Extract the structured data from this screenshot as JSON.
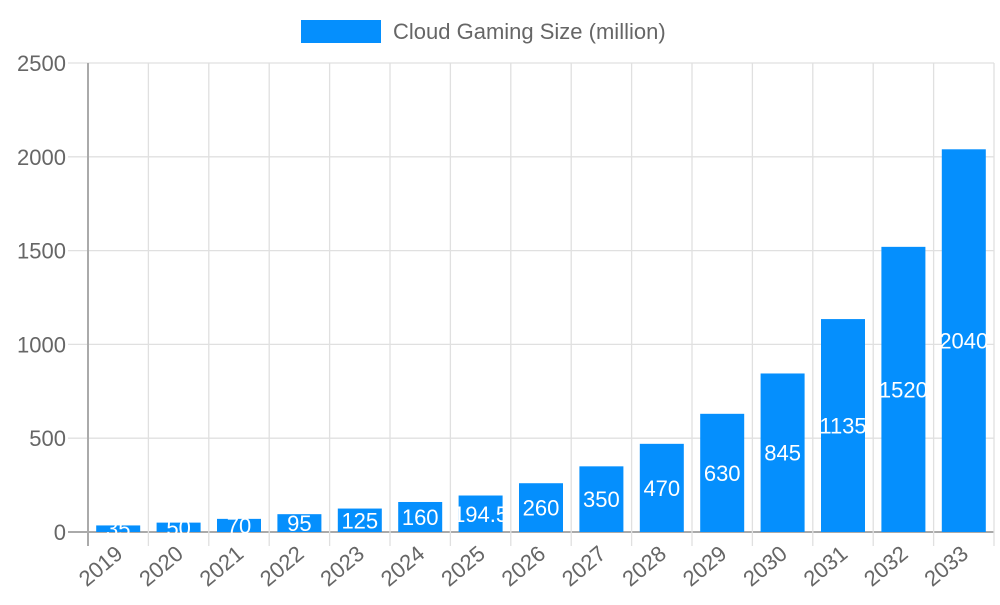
{
  "chart_data": {
    "type": "bar",
    "categories": [
      "2019",
      "2020",
      "2021",
      "2022",
      "2023",
      "2024",
      "2025",
      "2026",
      "2027",
      "2028",
      "2029",
      "2030",
      "2031",
      "2032",
      "2033"
    ],
    "series": [
      {
        "name": "Cloud Gaming Size (million)",
        "values": [
          35,
          50,
          70,
          95,
          125,
          160,
          194.5,
          260,
          350,
          470,
          630,
          845,
          1135,
          1520,
          2040
        ]
      }
    ],
    "ylim": [
      0,
      2500
    ],
    "yticks": [
      0,
      500,
      1000,
      1500,
      2000,
      2500
    ],
    "xlabel": "",
    "ylabel": "",
    "grid": true,
    "legend": "top",
    "colors": {
      "bar": "#058ffd",
      "text": "#666666",
      "grid": "#e0e0e0",
      "label": "#ffffff"
    }
  }
}
